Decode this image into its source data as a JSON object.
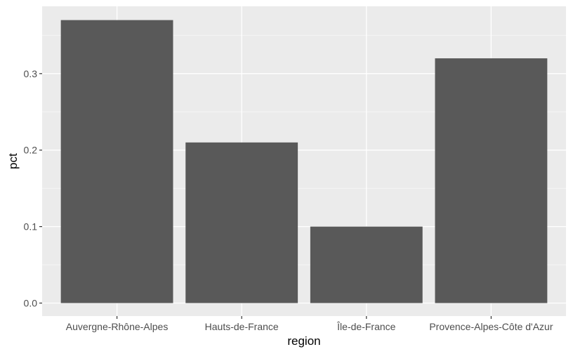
{
  "chart_data": {
    "type": "bar",
    "title": "",
    "xlabel": "region",
    "ylabel": "pct",
    "categories": [
      "Auvergne-Rhône-Alpes",
      "Hauts-de-France",
      "Île-de-France",
      "Provence-Alpes-Côte d'Azur"
    ],
    "values": [
      0.37,
      0.21,
      0.1,
      0.32
    ],
    "ylim": [
      -0.017,
      0.388
    ],
    "y_ticks": [
      0.0,
      0.1,
      0.2,
      0.3
    ],
    "y_tick_labels": [
      "0.0",
      "0.1",
      "0.2",
      "0.3"
    ],
    "grid": true,
    "legend": "none",
    "colors": {
      "bar": "#595959",
      "panel_background": "#ebebeb",
      "grid_major": "#ffffff",
      "grid_minor": "#f5f5f5",
      "tick_mark": "#333333"
    }
  }
}
